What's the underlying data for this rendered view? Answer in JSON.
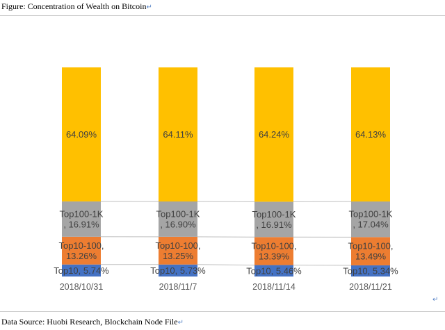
{
  "figure": {
    "title": "Figure: Concentration of Wealth on Bitcoin",
    "source": "Data Source: Huobi Research, Blockchain Node File",
    "mark": "↵"
  },
  "chart_data": {
    "type": "bar",
    "stacked": true,
    "categories": [
      "2018/10/31",
      "2018/11/7",
      "2018/11/14",
      "2018/11/21"
    ],
    "series": [
      {
        "name": "Top10",
        "values": [
          5.74,
          5.73,
          5.46,
          5.34
        ],
        "color": "#4472c4",
        "labels": [
          "Top10,  5.74%",
          "Top10,  5.73%",
          "Top10,  5.46%",
          "Top10,  5.34%"
        ]
      },
      {
        "name": "Top10-100",
        "values": [
          13.26,
          13.25,
          13.39,
          13.49
        ],
        "color": "#ed7d31",
        "labels": [
          "Top10-100,\n13.26%",
          "Top10-100,\n13.25%",
          "Top10-100,\n13.39%",
          "Top10-100,\n13.49%"
        ]
      },
      {
        "name": "Top100-1K",
        "values": [
          16.91,
          16.9,
          16.91,
          17.04
        ],
        "color": "#a5a5a5",
        "labels": [
          "Top100-1K\n,  16.91%",
          "Top100-1K\n,  16.90%",
          "Top100-1K\n,  16.91%",
          "Top100-1K\n,  17.04%"
        ]
      },
      {
        "name": "",
        "values": [
          64.09,
          64.11,
          64.24,
          64.13
        ],
        "color": "#ffc000",
        "labels": [
          "64.09%",
          "64.11%",
          "64.24%",
          "64.13%"
        ]
      }
    ],
    "ylim": [
      0,
      100
    ],
    "grid": false,
    "series_lines": true
  }
}
